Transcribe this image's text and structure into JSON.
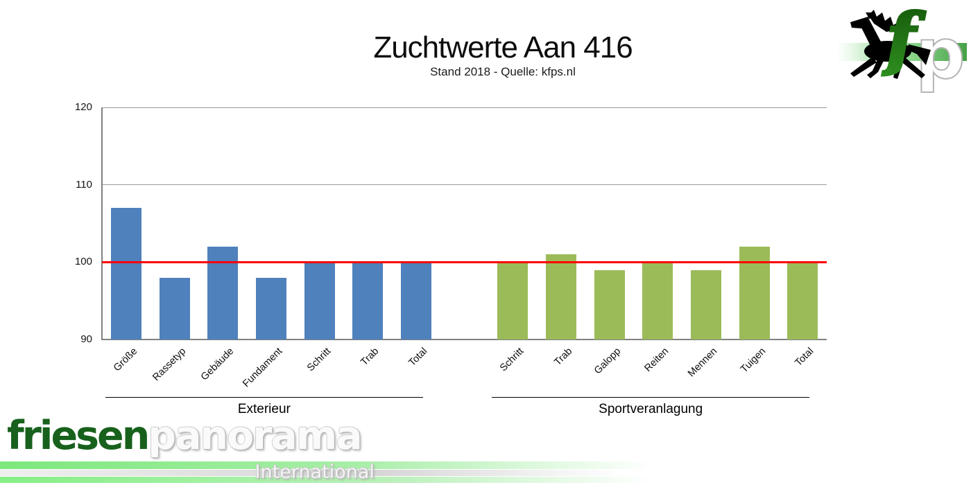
{
  "title": "Zuchtwerte Aan 416",
  "subtitle": "Stand 2018 - Quelle: kfps.nl",
  "chart_data": {
    "type": "bar",
    "title": "Zuchtwerte Aan 416",
    "subtitle": "Stand 2018 - Quelle: kfps.nl",
    "ylim": [
      90,
      120
    ],
    "yticks": [
      90,
      100,
      110,
      120
    ],
    "grid": true,
    "legend": "none",
    "reference_line": 100,
    "reference_line_color": "#FF0000",
    "groups": [
      {
        "label": "Exterieur",
        "color": "#4F81BD",
        "categories": [
          "Größe",
          "Rassetyp",
          "Gebäude",
          "Fundament",
          "Schritt",
          "Trab",
          "Total"
        ],
        "values": [
          107,
          98,
          102,
          98,
          100,
          100,
          100
        ]
      },
      {
        "label": "Sportveranlagung",
        "color": "#9BBB59",
        "categories": [
          "Schritt",
          "Trab",
          "Galopp",
          "Reiten",
          "Mennen",
          "Tuigen",
          "Total"
        ],
        "values": [
          100,
          101,
          99,
          100,
          99,
          102,
          100
        ]
      }
    ]
  },
  "branding": {
    "logo_top_right": {
      "icon": "friesian-horse-icon",
      "letter_f": "f",
      "letter_p": "p",
      "green_dark": "#15570a",
      "green_mid": "#2f9020",
      "band_green": "#46a046"
    },
    "wordmark": {
      "part1": "friesen",
      "part2": "panorama",
      "tagline": "International"
    }
  },
  "colors": {
    "bar_blue": "#4F81BD",
    "bar_green": "#9BBB59",
    "reference_red": "#FF0000",
    "gridline_gray": "#9a9a9a",
    "axis_gray": "#808080"
  }
}
